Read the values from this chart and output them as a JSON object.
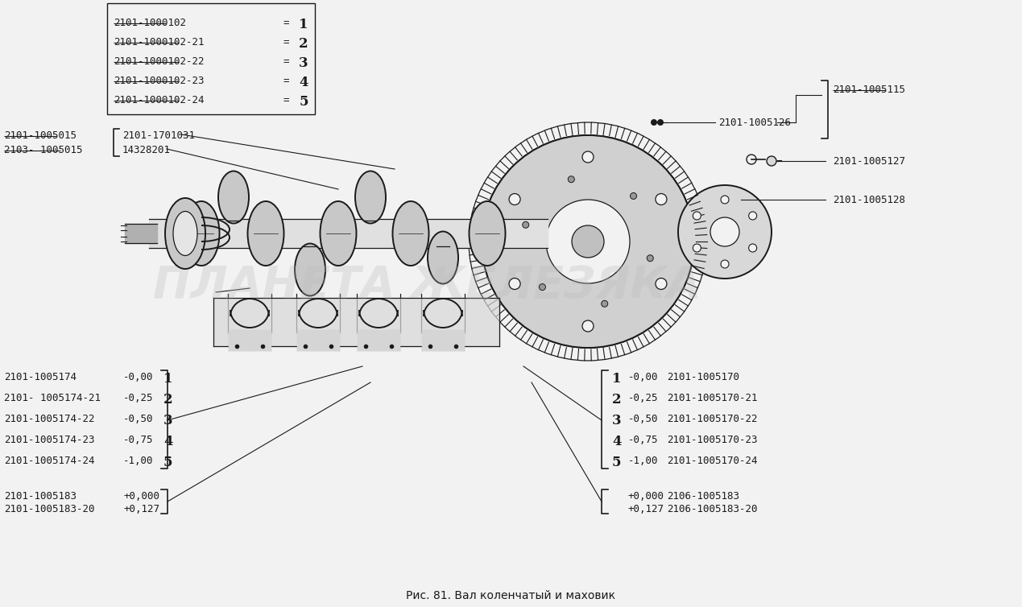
{
  "title": "Рис. 81. Вал коленчатый и маховик",
  "bg_color": "#f0f0f0",
  "text_color": "#1a1a1a",
  "top_box_items": [
    {
      "part": "2101-1000102",
      "num": "1"
    },
    {
      "part": "2101-1000102-21",
      "num": "2"
    },
    {
      "part": "2101-1000102-22",
      "num": "3"
    },
    {
      "part": "2101-1000102-23",
      "num": "4"
    },
    {
      "part": "2101-1000102-24",
      "num": "5"
    }
  ],
  "bottom_left_items": [
    {
      "part": "2101-1005174",
      "val": "-0,00",
      "num": "1"
    },
    {
      "part": "2101- 1005174-21",
      "val": "-0,25",
      "num": "2"
    },
    {
      "part": "2101-1005174-22",
      "val": "-0,50",
      "num": "3"
    },
    {
      "part": "2101-1005174-23",
      "val": "-0,75",
      "num": "4"
    },
    {
      "part": "2101-1005174-24",
      "val": "-1,00",
      "num": "5"
    }
  ],
  "bottom_left2_items": [
    {
      "part": "2101-1005183",
      "val": "+0,000"
    },
    {
      "part": "2101-1005183-20",
      "val": "+0,127"
    }
  ],
  "bottom_right_items": [
    {
      "num": "1",
      "val": "-0,00",
      "part": "2101-1005170"
    },
    {
      "num": "2",
      "val": "-0,25",
      "part": "2101-1005170-21"
    },
    {
      "num": "3",
      "val": "-0,50",
      "part": "2101-1005170-22"
    },
    {
      "num": "4",
      "val": "-0,75",
      "part": "2101-1005170-23"
    },
    {
      "num": "5",
      "val": "-1,00",
      "part": "2101-1005170-24"
    }
  ],
  "bottom_right2_items": [
    {
      "val": "+0,000",
      "part": "2106-1005183"
    },
    {
      "val": "+0,127",
      "part": "2106-1005183-20"
    }
  ],
  "watermark": "ПЛАНЕТА ЖЕЛЕЗЯКА",
  "lm_part1": "2101-1005015",
  "lm_part2": "2103- 1005015",
  "lm_item1": "2101-1701031",
  "lm_item2": "14328201",
  "tr_part_115": "2101-1005115",
  "tr_part_126": "2101-1005126",
  "tr_part_127": "2101-1005127",
  "tr_part_128": "2101-1005128"
}
